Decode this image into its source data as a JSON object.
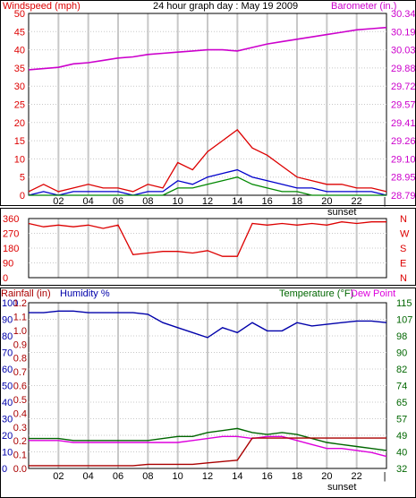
{
  "top": {
    "title": "24 hour graph day : May 19 2009",
    "left_label": "Windspeed (mph)",
    "right_label": "Barometer (in.)",
    "left_ticks": [
      "0",
      "5",
      "10",
      "15",
      "20",
      "25",
      "30",
      "35",
      "40",
      "45",
      "50"
    ],
    "right_ticks": [
      "28.79",
      "28.95",
      "29.10",
      "29.26",
      "29.41",
      "29.57",
      "29.72",
      "29.88",
      "30.03",
      "30.19",
      "30.34"
    ],
    "x_ticks": [
      "02",
      "04",
      "06",
      "08",
      "10",
      "12",
      "14",
      "16",
      "18",
      "20",
      "22"
    ],
    "sunset_label": "sunset"
  },
  "mid": {
    "left_ticks": [
      "0",
      "90",
      "180",
      "270",
      "360"
    ],
    "right_ticks": [
      "N",
      "E",
      "S",
      "W",
      "N"
    ]
  },
  "bottom": {
    "rain_label": "Rainfall (in)",
    "hum_label": "Humidity %",
    "temp_label": "Temperature (°F)",
    "dew_label": "Dew Point",
    "hum_ticks": [
      "0",
      "10",
      "20",
      "30",
      "40",
      "50",
      "60",
      "70",
      "80",
      "90",
      "100"
    ],
    "rain_ticks": [
      "0.0",
      "0.1",
      "0.2",
      "0.3",
      "0.4",
      "0.5",
      "0.6",
      "0.7",
      "0.8",
      "0.9",
      "1.0",
      "1.1",
      "1.2"
    ],
    "temp_ticks": [
      "32",
      "40",
      "49",
      "57",
      "65",
      "74",
      "82",
      "90",
      "98",
      "107",
      "115"
    ],
    "x_ticks": [
      "02",
      "04",
      "06",
      "08",
      "10",
      "12",
      "14",
      "16",
      "18",
      "20",
      "22"
    ],
    "sunset_label": "sunset"
  },
  "colors": {
    "wind": "#dd0000",
    "avg_wind": "#0000cc",
    "gust_green": "#008800",
    "barometer": "#cc00cc",
    "direction": "#dd0000",
    "humidity": "#0000aa",
    "temperature": "#006600",
    "dewpoint": "#dd00dd",
    "rainfall": "#aa0000",
    "grid": "#c8c8c8",
    "axis": "#000000"
  },
  "chart_data": [
    {
      "type": "line",
      "title": "24 hour graph day : May 19 2009",
      "x_hours": [
        0,
        1,
        2,
        3,
        4,
        5,
        6,
        7,
        8,
        9,
        10,
        11,
        12,
        13,
        14,
        15,
        16,
        17,
        18,
        19,
        20,
        21,
        22,
        23,
        24
      ],
      "series": [
        {
          "name": "Barometer (in.)",
          "axis": "right",
          "ylim": [
            28.79,
            30.34
          ],
          "values": [
            29.86,
            29.87,
            29.88,
            29.91,
            29.92,
            29.94,
            29.96,
            29.97,
            29.99,
            30.0,
            30.01,
            30.02,
            30.03,
            30.03,
            30.02,
            30.05,
            30.08,
            30.1,
            30.12,
            30.14,
            30.16,
            30.18,
            30.2,
            30.21,
            30.22
          ]
        },
        {
          "name": "Windspeed (mph)",
          "axis": "left",
          "ylim": [
            0,
            50
          ],
          "values": [
            1,
            3,
            1,
            2,
            3,
            2,
            2,
            1,
            3,
            2,
            9,
            7,
            12,
            15,
            18,
            13,
            11,
            8,
            5,
            4,
            3,
            3,
            2,
            2,
            1
          ]
        },
        {
          "axis": "left",
          "values": [
            0,
            1,
            0,
            1,
            1,
            1,
            1,
            0,
            1,
            1,
            4,
            3,
            5,
            6,
            7,
            5,
            4,
            3,
            2,
            2,
            1,
            1,
            1,
            1,
            0
          ]
        },
        {
          "axis": "left",
          "values": [
            0,
            0,
            0,
            0,
            0,
            0,
            0,
            0,
            0,
            0,
            2,
            2,
            3,
            4,
            5,
            3,
            2,
            1,
            1,
            0,
            0,
            0,
            0,
            0,
            0
          ]
        }
      ]
    },
    {
      "type": "line",
      "ylim": [
        0,
        360
      ],
      "x_hours": [
        0,
        1,
        2,
        3,
        4,
        5,
        6,
        7,
        8,
        9,
        10,
        11,
        12,
        13,
        14,
        15,
        16,
        17,
        18,
        19,
        20,
        21,
        22,
        23,
        24
      ],
      "values": [
        330,
        310,
        320,
        310,
        320,
        300,
        320,
        140,
        150,
        160,
        160,
        150,
        165,
        130,
        130,
        330,
        320,
        330,
        320,
        330,
        320,
        340,
        330,
        340,
        340
      ]
    },
    {
      "type": "line",
      "x_hours": [
        0,
        1,
        2,
        3,
        4,
        5,
        6,
        7,
        8,
        9,
        10,
        11,
        12,
        13,
        14,
        15,
        16,
        17,
        18,
        19,
        20,
        21,
        22,
        23,
        24
      ],
      "series": [
        {
          "name": "Humidity %",
          "axis": "left",
          "ylim": [
            0,
            100
          ],
          "values": [
            94,
            94,
            95,
            95,
            94,
            94,
            94,
            94,
            93,
            88,
            85,
            82,
            79,
            85,
            82,
            88,
            83,
            83,
            88,
            86,
            87,
            88,
            89,
            89,
            88
          ]
        },
        {
          "name": "Temperature (°F)",
          "axis": "right",
          "ylim": [
            32,
            115
          ],
          "values": [
            47,
            47,
            47,
            46,
            46,
            46,
            46,
            46,
            46,
            47,
            48,
            48,
            50,
            51,
            52,
            50,
            49,
            50,
            49,
            47,
            45,
            44,
            43,
            42,
            41
          ]
        },
        {
          "name": "Dew Point",
          "axis": "right",
          "ylim": [
            32,
            115
          ],
          "values": [
            46,
            46,
            46,
            45,
            45,
            45,
            45,
            45,
            45,
            45,
            45,
            46,
            47,
            48,
            48,
            47,
            48,
            48,
            46,
            44,
            42,
            42,
            41,
            40,
            38
          ]
        },
        {
          "name": "Rainfall (in)",
          "axis": "left2",
          "ylim": [
            0,
            1.2
          ],
          "values": [
            0.02,
            0.02,
            0.02,
            0.02,
            0.02,
            0.02,
            0.02,
            0.02,
            0.03,
            0.03,
            0.03,
            0.03,
            0.04,
            0.05,
            0.06,
            0.22,
            0.22,
            0.22,
            0.22,
            0.22,
            0.22,
            0.22,
            0.22,
            0.22,
            0.22
          ]
        }
      ]
    }
  ]
}
